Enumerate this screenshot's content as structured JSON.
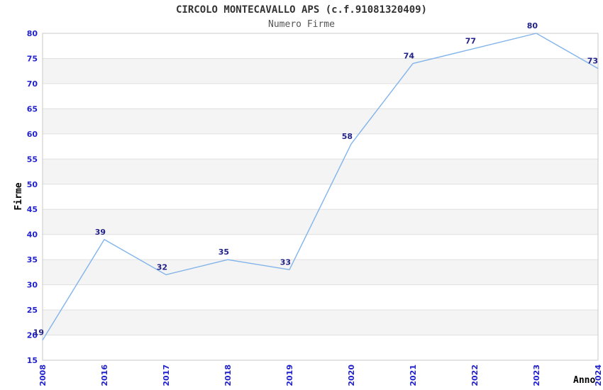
{
  "chart_data": {
    "type": "line",
    "title": "CIRCOLO MONTECAVALLO APS (c.f.91081320409)",
    "subtitle": "Numero Firme",
    "xlabel": "Anno",
    "ylabel": "Firme",
    "categories": [
      "2008",
      "2016",
      "2017",
      "2018",
      "2019",
      "2020",
      "2021",
      "2022",
      "2023",
      "2024"
    ],
    "values": [
      19,
      39,
      32,
      35,
      33,
      58,
      74,
      77,
      80,
      73
    ],
    "point_labels": [
      "19",
      "39",
      "32",
      "35",
      "33",
      "58",
      "74",
      "77",
      "80",
      "73"
    ],
    "ylim": [
      15,
      80
    ],
    "ytick_step": 5,
    "ytick_labels": [
      "15",
      "20",
      "25",
      "30",
      "35",
      "40",
      "45",
      "50",
      "55",
      "60",
      "65",
      "70",
      "75",
      "80"
    ],
    "xtick_rotation_deg": 90,
    "legend": "none",
    "grid": "horizontal gridlines with alternating shaded bands",
    "colors": {
      "line": "#82b4ea",
      "point_label": "#222288",
      "tick_label": "#2222cc",
      "title": "#333333",
      "subtitle": "#555555",
      "band_shaded": "#f4f4f4",
      "band_plain": "#ffffff",
      "gridline": "#e0e0e0",
      "plot_border": "#c9c9c9",
      "axis_title": "#000000",
      "background": "#ffffff"
    }
  }
}
